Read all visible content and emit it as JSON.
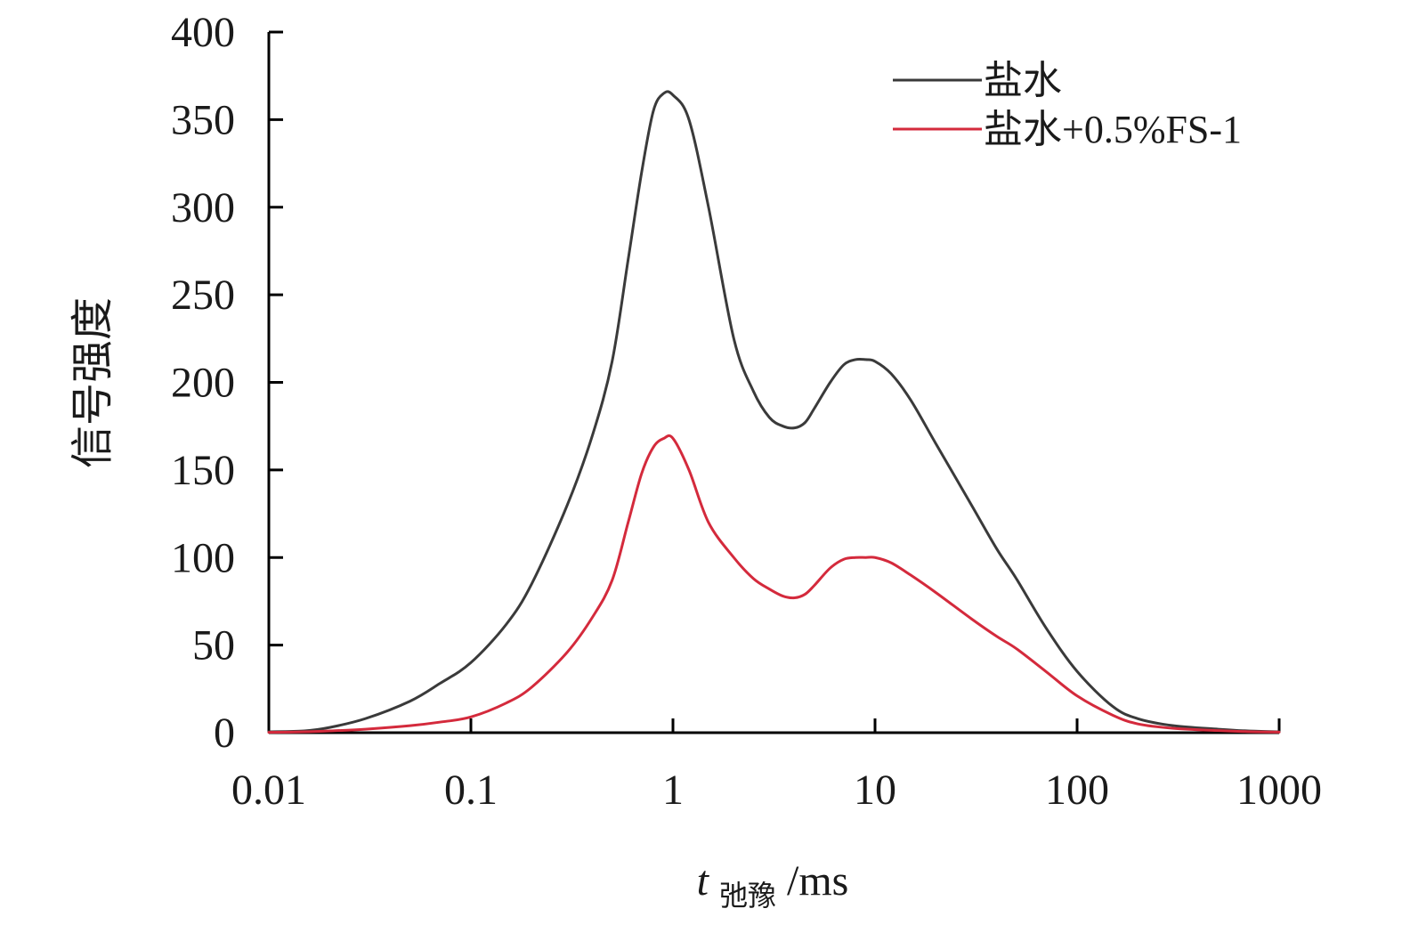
{
  "chart_data": {
    "type": "line",
    "x_scale": "log",
    "xlim": [
      0.01,
      1000
    ],
    "ylim": [
      0,
      400
    ],
    "grid": false,
    "legend_position": "top-right",
    "ylabel": "信号强度",
    "xlabel": {
      "main": "t",
      "subscript": "弛豫",
      "unit": "/ms"
    },
    "x_ticks": [
      {
        "value": 0.01,
        "label": "0.01"
      },
      {
        "value": 0.1,
        "label": "0.1"
      },
      {
        "value": 1,
        "label": "1"
      },
      {
        "value": 10,
        "label": "10"
      },
      {
        "value": 100,
        "label": "100"
      },
      {
        "value": 1000,
        "label": "1000"
      }
    ],
    "y_ticks": [
      {
        "value": 0,
        "label": "0"
      },
      {
        "value": 50,
        "label": "50"
      },
      {
        "value": 100,
        "label": "100"
      },
      {
        "value": 150,
        "label": "150"
      },
      {
        "value": 200,
        "label": "200"
      },
      {
        "value": 250,
        "label": "250"
      },
      {
        "value": 300,
        "label": "300"
      },
      {
        "value": 350,
        "label": "350"
      },
      {
        "value": 400,
        "label": "400"
      }
    ],
    "series": [
      {
        "name": "盐水",
        "color": "#3a3a3a",
        "x": [
          0.01,
          0.015,
          0.02,
          0.03,
          0.05,
          0.07,
          0.1,
          0.15,
          0.2,
          0.3,
          0.4,
          0.5,
          0.6,
          0.7,
          0.8,
          0.9,
          1.0,
          1.2,
          1.5,
          2.0,
          2.5,
          3.0,
          3.5,
          4.0,
          4.5,
          5.0,
          6.0,
          7.0,
          8.0,
          9.0,
          10,
          12,
          15,
          20,
          30,
          40,
          50,
          70,
          100,
          150,
          200,
          300,
          500,
          700,
          1000
        ],
        "y": [
          0.5,
          1,
          3,
          8,
          18,
          28,
          40,
          62,
          85,
          130,
          170,
          212,
          270,
          320,
          355,
          365,
          364,
          350,
          300,
          225,
          195,
          180,
          175,
          174,
          177,
          185,
          200,
          210,
          213,
          213,
          212,
          205,
          190,
          165,
          130,
          105,
          88,
          60,
          35,
          15,
          8,
          4,
          2,
          1,
          0.5
        ]
      },
      {
        "name": "盐水+0.5%FS-1",
        "color": "#d42a3c",
        "x": [
          0.01,
          0.015,
          0.02,
          0.03,
          0.05,
          0.07,
          0.1,
          0.15,
          0.2,
          0.3,
          0.4,
          0.5,
          0.6,
          0.7,
          0.8,
          0.9,
          1.0,
          1.2,
          1.5,
          2.0,
          2.5,
          3.0,
          3.5,
          4.0,
          4.5,
          5.0,
          6.0,
          7.0,
          8.0,
          9.0,
          10,
          12,
          15,
          20,
          30,
          40,
          50,
          70,
          100,
          150,
          200,
          300,
          500,
          700,
          1000
        ],
        "y": [
          0.2,
          0.5,
          1,
          2,
          4,
          6,
          9,
          17,
          26,
          46,
          66,
          87,
          120,
          148,
          163,
          168,
          168,
          150,
          120,
          100,
          88,
          82,
          78,
          77,
          79,
          84,
          94,
          99,
          100,
          100,
          100,
          97,
          90,
          80,
          65,
          55,
          48,
          35,
          21,
          10,
          5,
          2.5,
          1.2,
          0.6,
          0.3
        ]
      }
    ]
  }
}
